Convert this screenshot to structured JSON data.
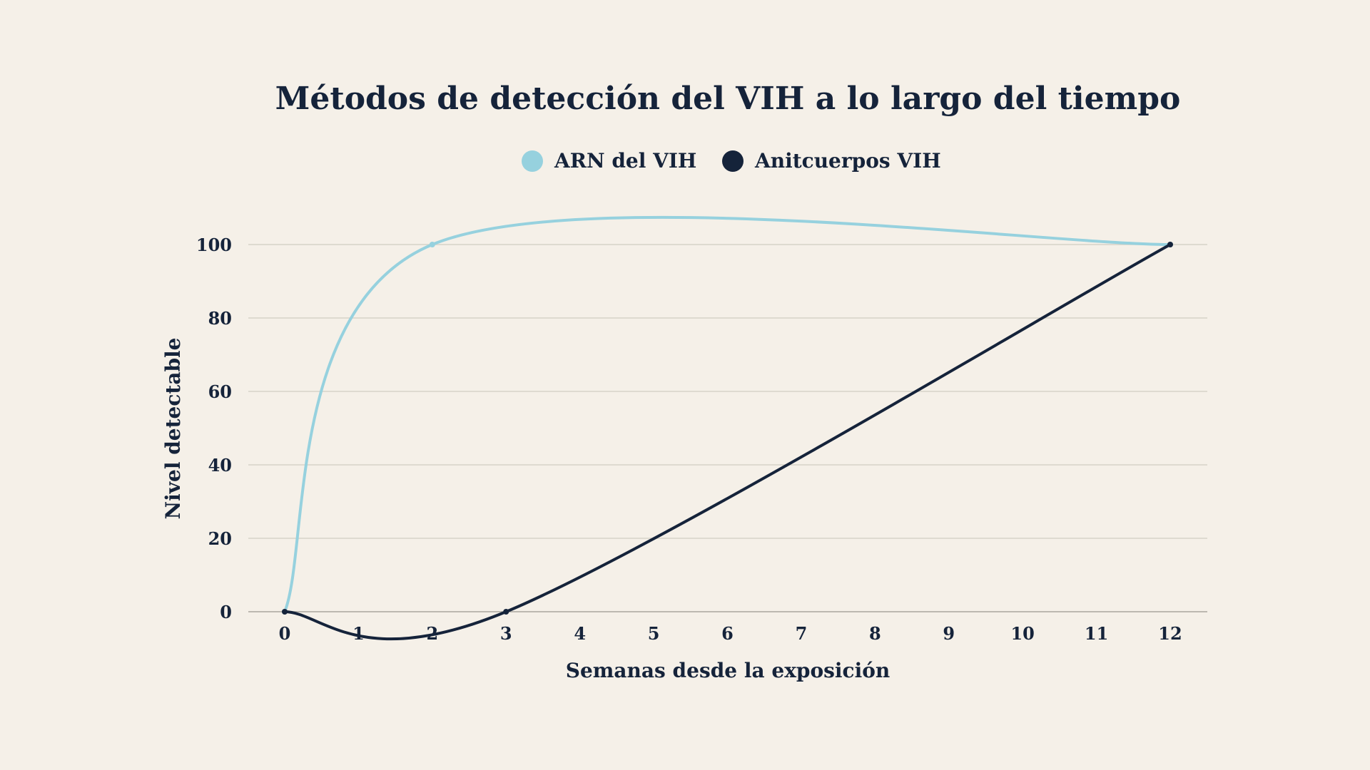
{
  "chart_data": {
    "type": "line",
    "title": "Métodos de detección del VIH a lo largo del tiempo",
    "xlabel": "Semanas desde la exposición",
    "ylabel": "Nivel detectable",
    "x": [
      0,
      1,
      2,
      3,
      4,
      5,
      6,
      7,
      8,
      9,
      10,
      11,
      12
    ],
    "x_ticks": [
      "0",
      "1",
      "2",
      "3",
      "4",
      "5",
      "6",
      "7",
      "8",
      "9",
      "10",
      "11",
      "12"
    ],
    "y_ticks": [
      "0",
      "20",
      "40",
      "60",
      "80",
      "100"
    ],
    "xlim": [
      0,
      12
    ],
    "ylim": [
      0,
      100
    ],
    "grid": true,
    "legend_position": "top-center",
    "series": [
      {
        "name": "ARN del VIH",
        "color": "#96D1DE",
        "points": [
          [
            0,
            0
          ],
          [
            2,
            100
          ],
          [
            12,
            100
          ]
        ]
      },
      {
        "name": "Anitcuerpos VIH",
        "color": "#15233A",
        "points": [
          [
            0,
            0
          ],
          [
            3,
            0
          ],
          [
            12,
            100
          ]
        ]
      }
    ]
  }
}
